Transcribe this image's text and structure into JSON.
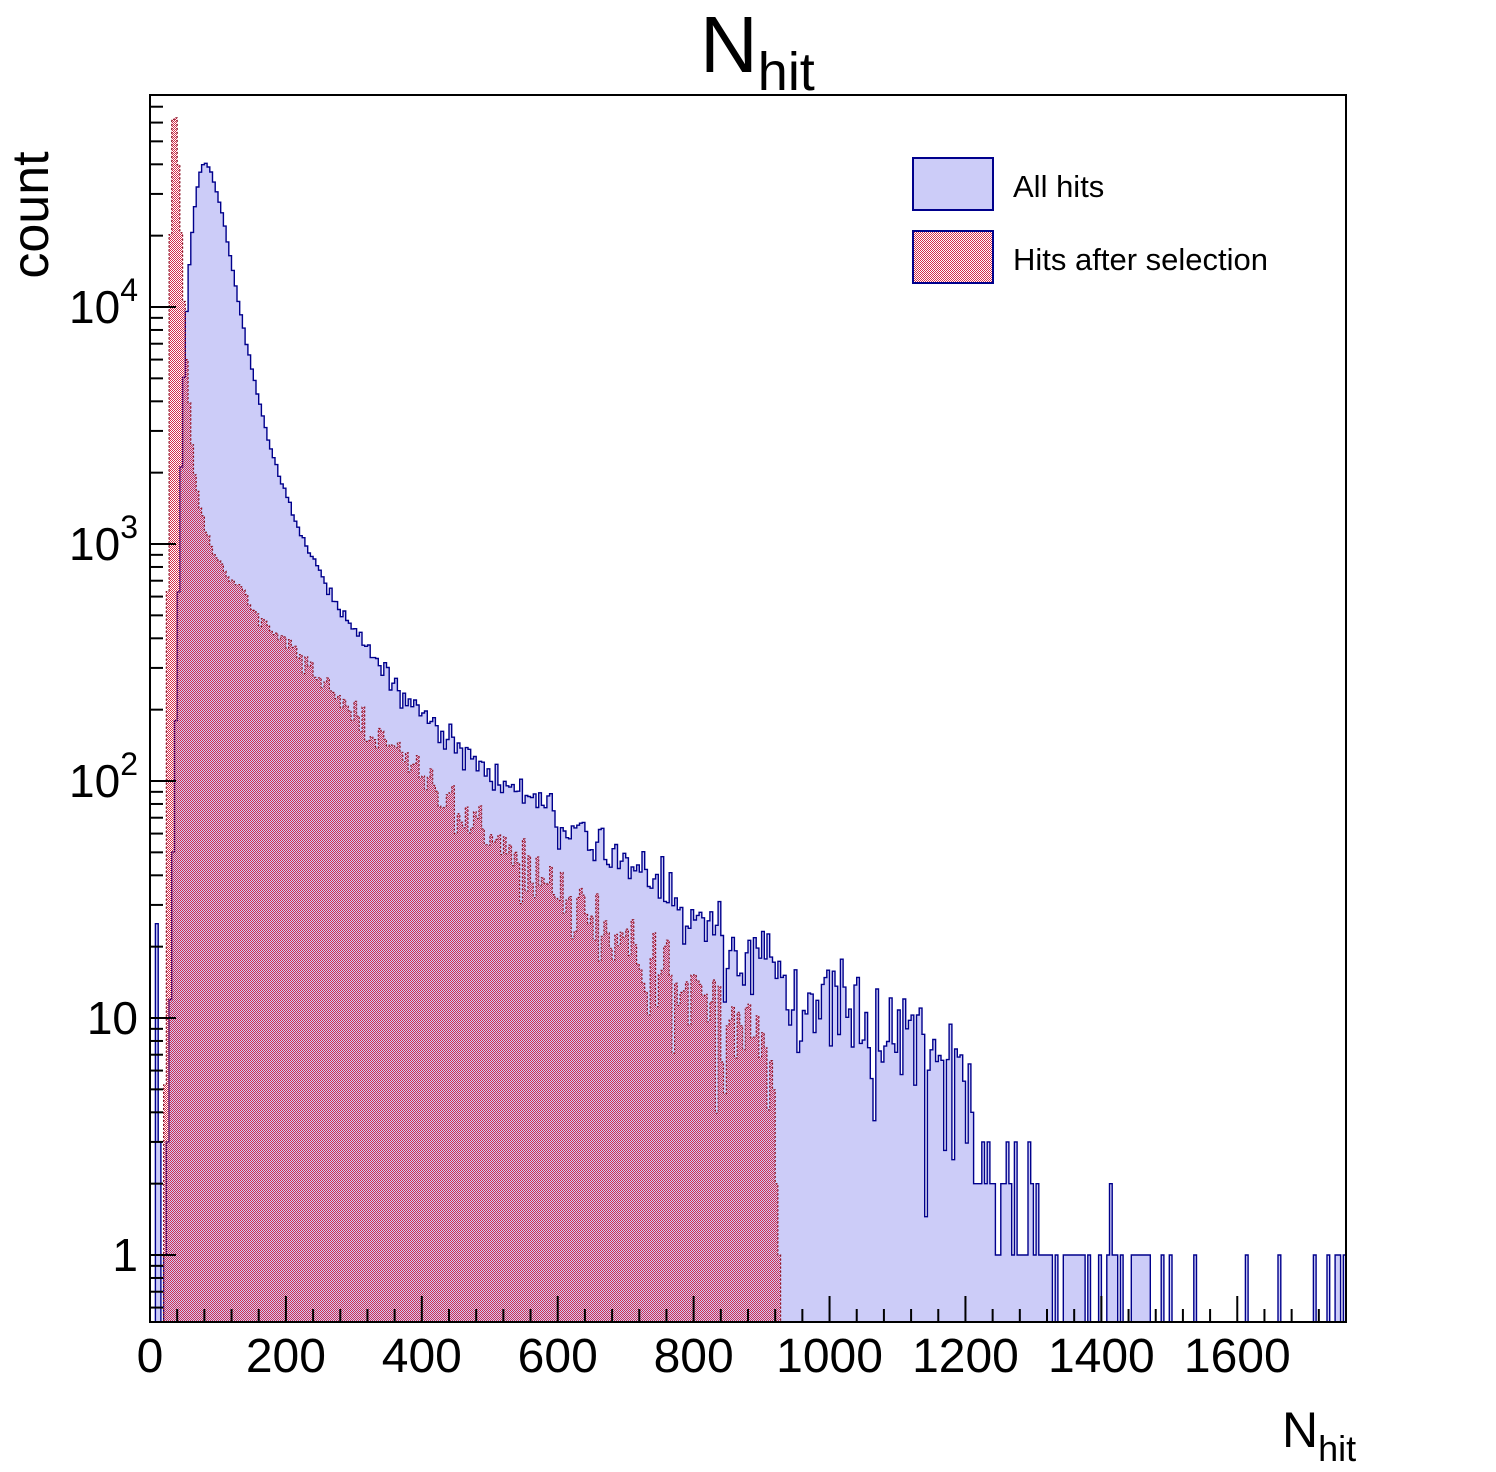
{
  "title": {
    "main": "N",
    "sub": "hit"
  },
  "axes": {
    "y_label": "count",
    "x_label_main": "N",
    "x_label_sub": "hit",
    "x_major_ticks": [
      0,
      200,
      400,
      600,
      800,
      1000,
      1200,
      1400,
      1600
    ],
    "x_minor_step": 40,
    "y_major_ticks": [
      {
        "label": "1",
        "exp": 0
      },
      {
        "label": "10",
        "exp": 1
      },
      {
        "label": "10",
        "exp": 2,
        "sup": "2"
      },
      {
        "label": "10",
        "exp": 3,
        "sup": "3"
      },
      {
        "label": "10",
        "exp": 4,
        "sup": "4"
      }
    ]
  },
  "legend": {
    "items": [
      {
        "label": "All hits",
        "swatch": "solid"
      },
      {
        "label": "Hits after selection",
        "swatch": "hatch"
      }
    ]
  },
  "colors": {
    "background": "#ffffff",
    "frame": "#000000",
    "blue_line": "#00008c",
    "blue_fill": "#ccccf8",
    "red_line": "#8b1a2c",
    "red_hatch": "#d42e4c",
    "text": "#000000"
  },
  "chart_data": {
    "type": "histogram-step",
    "title": "N_hit",
    "xlabel": "N_hit",
    "ylabel": "count",
    "x_range": [
      0,
      1760
    ],
    "bin_width": 4,
    "y_scale": "log",
    "y_range": [
      0.52,
      78000
    ],
    "grid": false,
    "legend_position": "top-right",
    "noise_seed": 1337,
    "series": [
      {
        "name": "All hits",
        "style": "blue",
        "anchors": [
          [
            20,
            0.5
          ],
          [
            24,
            1.5
          ],
          [
            28,
            6
          ],
          [
            32,
            25
          ],
          [
            36,
            95
          ],
          [
            40,
            350
          ],
          [
            44,
            1200
          ],
          [
            48,
            3500
          ],
          [
            52,
            7500
          ],
          [
            56,
            12500
          ],
          [
            60,
            18000
          ],
          [
            64,
            24000
          ],
          [
            68,
            29500
          ],
          [
            72,
            35000
          ],
          [
            76,
            39500
          ],
          [
            80,
            41000
          ],
          [
            84,
            40000
          ],
          [
            89,
            37500
          ],
          [
            94,
            34000
          ],
          [
            100,
            29500
          ],
          [
            106,
            25000
          ],
          [
            112,
            20500
          ],
          [
            118,
            16500
          ],
          [
            124,
            13200
          ],
          [
            130,
            10500
          ],
          [
            137,
            8300
          ],
          [
            144,
            6600
          ],
          [
            152,
            5200
          ],
          [
            160,
            4100
          ],
          [
            168,
            3250
          ],
          [
            177,
            2600
          ],
          [
            187,
            2080
          ],
          [
            198,
            1680
          ],
          [
            210,
            1360
          ],
          [
            223,
            1100
          ],
          [
            237,
            900
          ],
          [
            252,
            740
          ],
          [
            268,
            610
          ],
          [
            285,
            505
          ],
          [
            303,
            420
          ],
          [
            322,
            350
          ],
          [
            342,
            295
          ],
          [
            363,
            250
          ],
          [
            385,
            215
          ],
          [
            408,
            185
          ],
          [
            432,
            160
          ],
          [
            457,
            139
          ],
          [
            483,
            121
          ],
          [
            510,
            105
          ],
          [
            538,
            92
          ],
          [
            567,
            81
          ],
          [
            597,
            71
          ],
          [
            628,
            62
          ],
          [
            660,
            54
          ],
          [
            693,
            47
          ],
          [
            727,
            40
          ],
          [
            762,
            34
          ],
          [
            798,
            28
          ],
          [
            835,
            23
          ],
          [
            873,
            19
          ],
          [
            912,
            15.5
          ],
          [
            930,
            13
          ],
          [
            960,
            12
          ],
          [
            1000,
            11
          ],
          [
            1040,
            10
          ],
          [
            1080,
            9
          ],
          [
            1120,
            8
          ],
          [
            1150,
            7
          ],
          [
            1180,
            5.5
          ],
          [
            1200,
            4.5
          ],
          [
            1215,
            3.5
          ],
          [
            1222,
            3
          ],
          [
            1240,
            2.2
          ],
          [
            1260,
            1.8
          ],
          [
            1280,
            1.5
          ],
          [
            1294,
            1.6
          ],
          [
            1313,
            1.2
          ],
          [
            1330,
            0.7
          ],
          [
            1350,
            0.55
          ],
          [
            1370,
            0.5
          ],
          [
            1392,
            0.45
          ],
          [
            1400,
            0.2
          ],
          [
            1420,
            0.25
          ],
          [
            1440,
            0.3
          ],
          [
            1460,
            0.25
          ],
          [
            1480,
            0.2
          ],
          [
            1500,
            0.22
          ],
          [
            1520,
            0.12
          ],
          [
            1545,
            0.1
          ],
          [
            1565,
            0.18
          ],
          [
            1590,
            0.1
          ],
          [
            1620,
            0.06
          ],
          [
            1650,
            0.05
          ],
          [
            1680,
            0.08
          ],
          [
            1700,
            0.05
          ],
          [
            1720,
            0.12
          ],
          [
            1740,
            0.05
          ],
          [
            1760,
            0.3
          ]
        ],
        "spikes": [
          [
            11,
            25
          ],
          [
            13,
            3
          ],
          [
            1412,
            2
          ],
          [
            1712,
            1
          ],
          [
            1758,
            1
          ]
        ]
      },
      {
        "name": "Hits after selection",
        "style": "red",
        "anchors": [
          [
            19,
            0.6
          ],
          [
            22,
            4
          ],
          [
            24,
            45
          ],
          [
            26,
            600
          ],
          [
            28,
            5000
          ],
          [
            30,
            20000
          ],
          [
            32,
            42000
          ],
          [
            34,
            62000
          ],
          [
            36,
            68000
          ],
          [
            38,
            63000
          ],
          [
            40,
            52000
          ],
          [
            42,
            40000
          ],
          [
            44,
            29000
          ],
          [
            46,
            20500
          ],
          [
            48,
            14500
          ],
          [
            50,
            10500
          ],
          [
            52,
            7800
          ],
          [
            55,
            5400
          ],
          [
            58,
            3900
          ],
          [
            61,
            2900
          ],
          [
            64,
            2250
          ],
          [
            68,
            1800
          ],
          [
            72,
            1520
          ],
          [
            77,
            1300
          ],
          [
            82,
            1150
          ],
          [
            88,
            1030
          ],
          [
            95,
            930
          ],
          [
            103,
            840
          ],
          [
            112,
            760
          ],
          [
            122,
            690
          ],
          [
            133,
            625
          ],
          [
            145,
            565
          ],
          [
            158,
            510
          ],
          [
            172,
            460
          ],
          [
            187,
            415
          ],
          [
            203,
            370
          ],
          [
            220,
            330
          ],
          [
            238,
            292
          ],
          [
            257,
            258
          ],
          [
            277,
            227
          ],
          [
            298,
            199
          ],
          [
            320,
            174
          ],
          [
            343,
            152
          ],
          [
            367,
            132
          ],
          [
            392,
            114
          ],
          [
            418,
            98
          ],
          [
            445,
            84
          ],
          [
            473,
            72
          ],
          [
            502,
            61
          ],
          [
            532,
            52
          ],
          [
            563,
            44
          ],
          [
            595,
            37
          ],
          [
            628,
            31
          ],
          [
            662,
            26
          ],
          [
            697,
            21.5
          ],
          [
            733,
            17.5
          ],
          [
            770,
            14
          ],
          [
            808,
            11.5
          ],
          [
            847,
            9.5
          ],
          [
            887,
            8
          ],
          [
            910,
            7
          ],
          [
            916,
            5
          ],
          [
            921,
            3
          ],
          [
            925,
            1.5
          ],
          [
            928,
            0.6
          ]
        ],
        "spikes": [],
        "x_cut": 932
      }
    ]
  },
  "plot_geometry_note": "frame left 150, right 1346, top 95, bottom 1322; decade = 237px; y of count 1 = 1255; px per x-unit = 0.6775"
}
